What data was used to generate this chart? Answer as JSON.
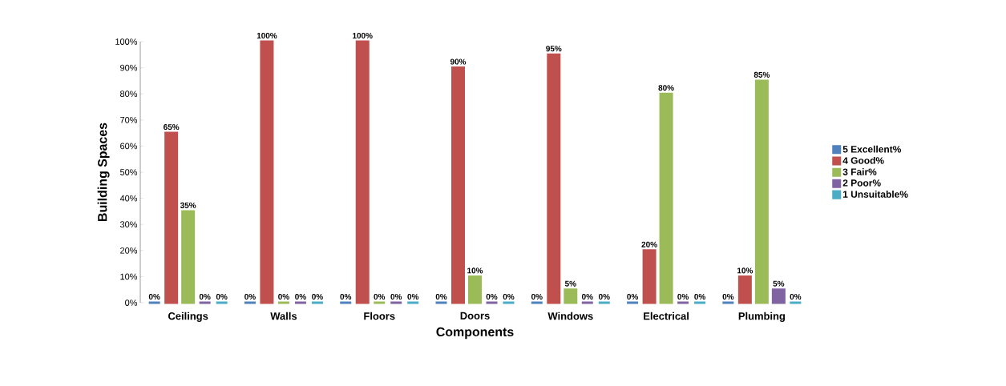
{
  "chart_data": {
    "type": "bar",
    "xlabel": "Components",
    "ylabel": "Building Spaces",
    "categories": [
      "Ceilings",
      "Walls",
      "Floors",
      "Doors",
      "Windows",
      "Electrical",
      "Plumbing"
    ],
    "series": [
      {
        "name": "5 Excellent%",
        "color": "#4f81bd",
        "values": [
          0,
          0,
          0,
          0,
          0,
          0,
          0
        ],
        "value_labels": [
          "0%",
          "0%",
          "0%",
          "0%",
          "0%",
          "0%",
          "0%"
        ]
      },
      {
        "name": "4 Good%",
        "color": "#c0504d",
        "values": [
          65,
          100,
          100,
          90,
          95,
          20,
          10
        ],
        "value_labels": [
          "65%",
          "100%",
          "100%",
          "90%",
          "95%",
          "20%",
          "10%"
        ]
      },
      {
        "name": "3 Fair%",
        "color": "#9bbb59",
        "values": [
          35,
          0,
          0,
          10,
          5,
          80,
          85
        ],
        "value_labels": [
          "35%",
          "0%",
          "0%",
          "10%",
          "5%",
          "80%",
          "85%"
        ]
      },
      {
        "name": "2 Poor%",
        "color": "#8064a2",
        "values": [
          0,
          0,
          0,
          0,
          0,
          0,
          5
        ],
        "value_labels": [
          "0%",
          "0%",
          "0%",
          "0%",
          "0%",
          "0%",
          "5%"
        ]
      },
      {
        "name": "1 Unsuitable%",
        "color": "#4bacc6",
        "values": [
          0,
          0,
          0,
          0,
          0,
          0,
          0
        ],
        "value_labels": [
          "0%",
          "0%",
          "0%",
          "0%",
          "0%",
          "0%",
          "0%"
        ]
      }
    ],
    "ylim": [
      0,
      100
    ],
    "yticks": [
      {
        "value": 0,
        "label": "0%"
      },
      {
        "value": 10,
        "label": "10%"
      },
      {
        "value": 20,
        "label": "20%"
      },
      {
        "value": 30,
        "label": "30%"
      },
      {
        "value": 40,
        "label": "40%"
      },
      {
        "value": 50,
        "label": "50%"
      },
      {
        "value": 60,
        "label": "60%"
      },
      {
        "value": 70,
        "label": "70%"
      },
      {
        "value": 80,
        "label": "80%"
      },
      {
        "value": 90,
        "label": "90%"
      },
      {
        "value": 100,
        "label": "100%"
      }
    ],
    "legend": "right"
  }
}
